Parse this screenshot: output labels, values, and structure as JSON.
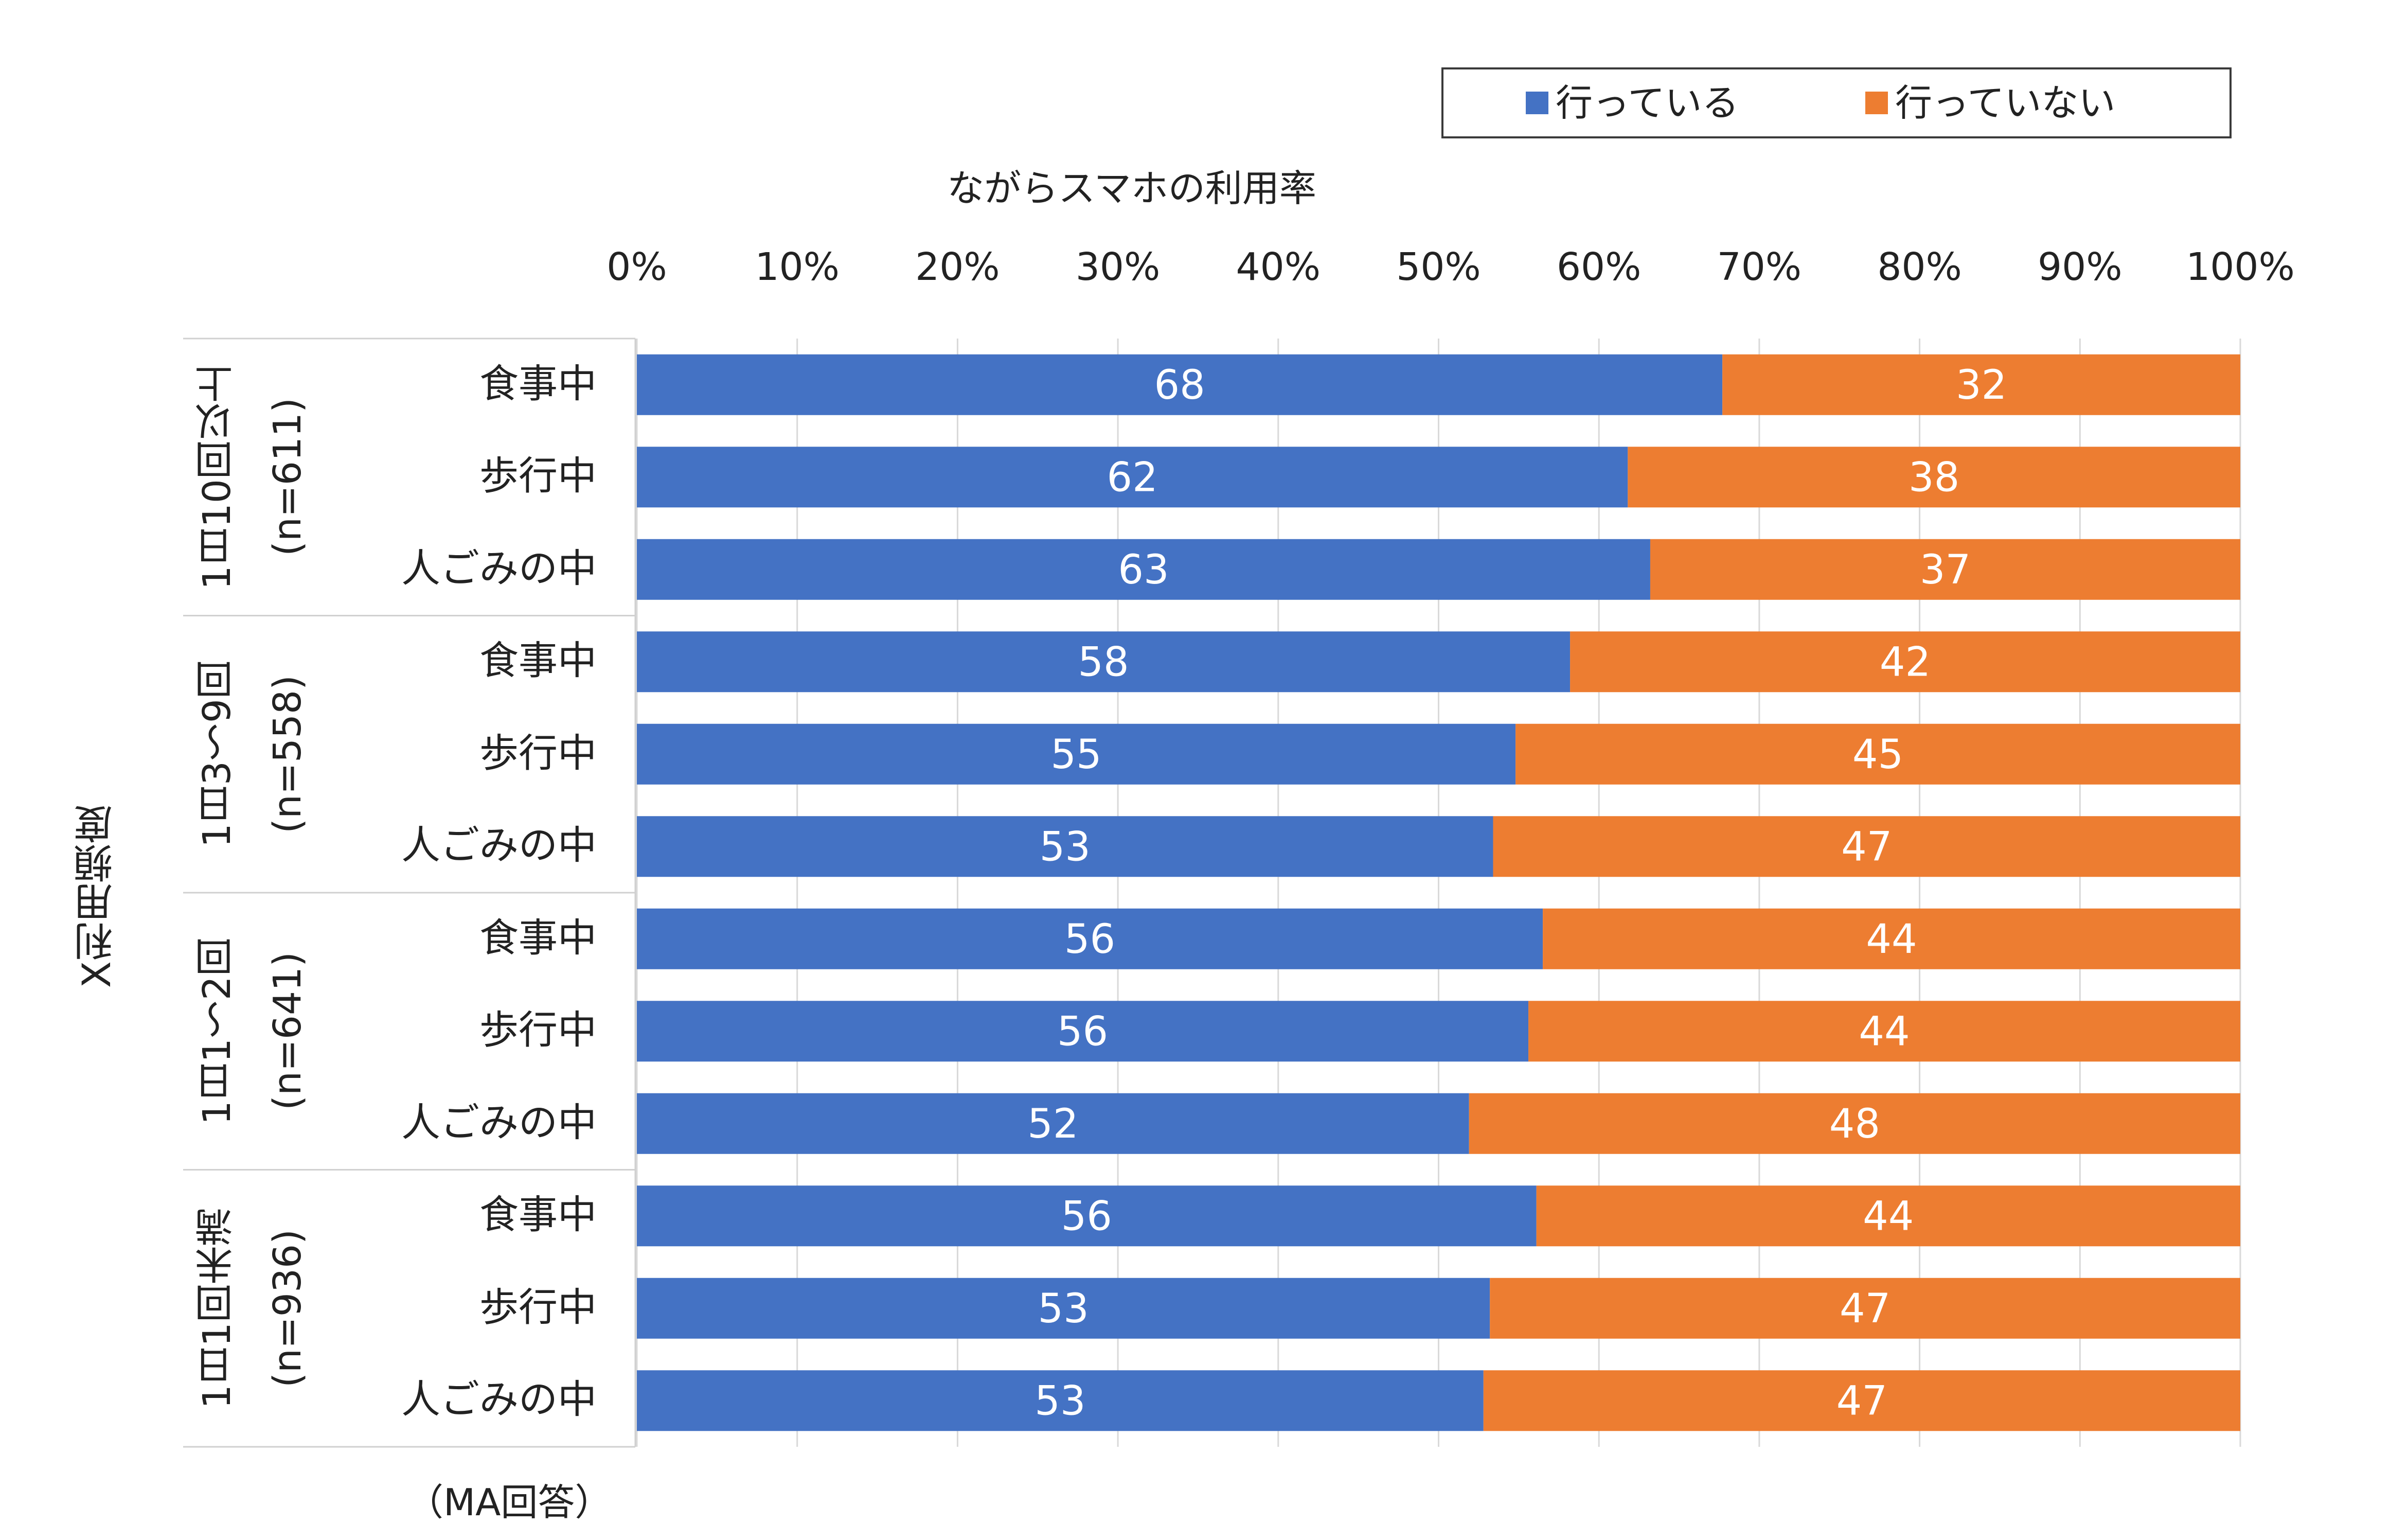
{
  "legend": {
    "items": [
      {
        "label": "行っている",
        "color": "#4472C4"
      },
      {
        "label": "行っていない",
        "color": "#ED7D31"
      }
    ]
  },
  "chart_data": {
    "type": "bar",
    "orientation": "horizontal",
    "stacked": true,
    "xlabel": "ながらスマホの利用率",
    "ylabel": "X利用頻度",
    "xlim": [
      0,
      100
    ],
    "x_ticks": [
      "0%",
      "10%",
      "20%",
      "30%",
      "40%",
      "50%",
      "60%",
      "70%",
      "80%",
      "90%",
      "100%"
    ],
    "grid": true,
    "legend_position": "top-right",
    "groups": [
      {
        "label": "1日10回以上",
        "n_label": "(n=611)",
        "categories": [
          "食事中",
          "歩行中",
          "人ごみの中"
        ]
      },
      {
        "label": "1日3～9回",
        "n_label": "(n=558)",
        "categories": [
          "食事中",
          "歩行中",
          "人ごみの中"
        ]
      },
      {
        "label": "1日1～2回",
        "n_label": "(n=641)",
        "categories": [
          "食事中",
          "歩行中",
          "人ごみの中"
        ]
      },
      {
        "label": "1日1回未満",
        "n_label": "(n=936)",
        "categories": [
          "食事中",
          "歩行中",
          "人ごみの中"
        ]
      }
    ],
    "series": [
      {
        "name": "行っている",
        "color": "#4472C4",
        "values": [
          67.7,
          61.8,
          63.2,
          58.2,
          54.8,
          53.4,
          56.5,
          55.6,
          51.9,
          56.1,
          53.2,
          52.8
        ],
        "labels": [
          "68",
          "62",
          "63",
          "58",
          "55",
          "53",
          "56",
          "56",
          "52",
          "56",
          "53",
          "53"
        ]
      },
      {
        "name": "行っていない",
        "color": "#ED7D31",
        "values": [
          32.3,
          38.2,
          36.8,
          41.8,
          45.2,
          46.6,
          43.5,
          44.4,
          48.1,
          43.9,
          46.8,
          47.2
        ],
        "labels": [
          "32",
          "38",
          "37",
          "42",
          "45",
          "47",
          "44",
          "44",
          "48",
          "44",
          "47",
          "47"
        ]
      }
    ]
  },
  "note": "（MA回答）"
}
